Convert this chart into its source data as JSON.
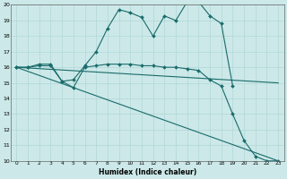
{
  "xlabel": "Humidex (Indice chaleur)",
  "xlim": [
    -0.5,
    23.5
  ],
  "ylim": [
    10,
    20
  ],
  "xticks": [
    0,
    1,
    2,
    3,
    4,
    5,
    6,
    7,
    8,
    9,
    10,
    11,
    12,
    13,
    14,
    15,
    16,
    17,
    18,
    19,
    20,
    21,
    22,
    23
  ],
  "yticks": [
    10,
    11,
    12,
    13,
    14,
    15,
    16,
    17,
    18,
    19,
    20
  ],
  "bg_color": "#cce8e8",
  "line_color": "#1a6b6b",
  "lines": [
    {
      "x": [
        0,
        1,
        2,
        3,
        4,
        5,
        6,
        7,
        8,
        9,
        10,
        11,
        12,
        13,
        14,
        15,
        16,
        17,
        18,
        19,
        20,
        21,
        22,
        23
      ],
      "y": [
        16,
        16,
        16.2,
        16.2,
        15.1,
        15.2,
        16.1,
        17.0,
        18.5,
        19.7,
        19.5,
        19.2,
        18.0,
        19.3,
        19.0,
        20.2,
        20.2,
        19.3,
        18.8,
        14.8,
        null,
        null,
        null,
        null
      ],
      "marker": "D",
      "markersize": 2.0,
      "linewidth": 0.8
    },
    {
      "x": [
        0,
        1,
        2,
        3,
        4,
        5,
        6,
        7,
        8,
        9,
        10,
        11,
        12,
        13,
        14,
        15,
        16,
        17,
        18,
        19,
        20,
        21,
        22,
        23
      ],
      "y": [
        16,
        16,
        16.1,
        16.1,
        15.1,
        14.7,
        16.0,
        16.1,
        16.2,
        16.2,
        16.2,
        16.1,
        16.1,
        16.0,
        16.0,
        15.9,
        15.8,
        15.2,
        14.8,
        13.0,
        11.3,
        10.3,
        10.0,
        10.0
      ],
      "marker": "D",
      "markersize": 2.0,
      "linewidth": 0.8
    },
    {
      "x": [
        0,
        23
      ],
      "y": [
        16,
        15.0
      ],
      "marker": null,
      "markersize": 0,
      "linewidth": 0.8
    },
    {
      "x": [
        0,
        23
      ],
      "y": [
        16,
        10.0
      ],
      "marker": null,
      "markersize": 0,
      "linewidth": 0.8
    }
  ]
}
